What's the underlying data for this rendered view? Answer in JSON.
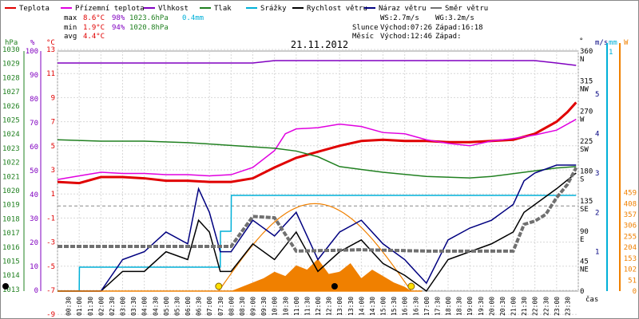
{
  "legend": [
    {
      "label": "Teplota",
      "color": "#e00000"
    },
    {
      "label": "Přízemní teplota",
      "color": "#e000e0"
    },
    {
      "label": "Vlhkost",
      "color": "#8000c0"
    },
    {
      "label": "Tlak",
      "color": "#208020"
    },
    {
      "label": "Srážky",
      "color": "#00b0d8"
    },
    {
      "label": "Rychlost větru",
      "color": "#000000"
    },
    {
      "label": "Náraz větru",
      "color": "#000080"
    },
    {
      "label": "Směr větru",
      "color": "#707070"
    }
  ],
  "stats": {
    "max_label": "max",
    "max_temp": "8.6°C",
    "max_hum": "98%",
    "max_press": "1023.6hPa",
    "max_rain": "0.4mm",
    "min_label": "min",
    "min_temp": "1.9°C",
    "min_hum": "94%",
    "min_press": "1020.8hPa",
    "avg_label": "avg",
    "avg_temp": "4.4°C"
  },
  "wind_stats": {
    "ws": "WS:2.7m/s",
    "wg": "WG:3.2m/s"
  },
  "sun_moon": {
    "sun_label": "Slunce",
    "sun_rise": "Východ:07:26",
    "sun_set": "Západ:16:18",
    "moon_label": "Měsíc",
    "moon_rise": "Východ:12:46",
    "moon_set": "Západ:"
  },
  "title": "21.11.2012",
  "axes": {
    "hpa_unit": "hPa",
    "pct_unit": "%",
    "c_unit": "°C",
    "deg_unit": "°",
    "ms_unit": "m/s",
    "mm_unit": "mm",
    "w_unit": "W",
    "x_unit": "čas",
    "hpa_ticks": [
      "1030",
      "1029",
      "1028",
      "1027",
      "1026",
      "1025",
      "1024",
      "1023",
      "1022",
      "1021",
      "1020",
      "1019",
      "1018",
      "1017",
      "1016",
      "1015",
      "1014",
      "1013"
    ],
    "pct_ticks": [
      "100",
      "90",
      "80",
      "70",
      "60",
      "50",
      "40",
      "30",
      "20",
      "10",
      "0"
    ],
    "c_ticks": [
      "13",
      "11",
      "9",
      "7",
      "5",
      "3",
      "1",
      "-1",
      "-3",
      "-5",
      "-7",
      "-9"
    ],
    "dir_ticks": [
      {
        "deg": "360",
        "d": "N"
      },
      {
        "deg": "315",
        "d": "NW"
      },
      {
        "deg": "270",
        "d": "W"
      },
      {
        "deg": "225",
        "d": "SW"
      },
      {
        "deg": "180",
        "d": "S"
      },
      {
        "deg": "135",
        "d": "SE"
      },
      {
        "deg": "90",
        "d": "E"
      },
      {
        "deg": "45",
        "d": "NE"
      },
      {
        "deg": "0",
        "d": ""
      }
    ],
    "ms_ticks": [
      "5",
      "4",
      "3",
      "2",
      "1"
    ],
    "mm_ticks": [
      "1"
    ],
    "w_ticks": [
      "459",
      "408",
      "357",
      "306",
      "255",
      "204",
      "153",
      "102",
      "51",
      "0"
    ],
    "x_ticks": [
      "00:30",
      "01:00",
      "01:30",
      "02:00",
      "02:30",
      "03:00",
      "03:30",
      "04:00",
      "04:30",
      "05:00",
      "05:30",
      "06:00",
      "06:30",
      "07:00",
      "07:30",
      "08:00",
      "08:30",
      "09:00",
      "09:30",
      "10:00",
      "10:30",
      "11:00",
      "11:30",
      "12:00",
      "12:30",
      "13:00",
      "13:30",
      "14:00",
      "14:30",
      "15:00",
      "15:30",
      "16:00",
      "16:30",
      "17:00",
      "17:30",
      "18:00",
      "18:30",
      "19:00",
      "19:30",
      "20:00",
      "20:30",
      "21:00",
      "21:30",
      "22:00",
      "22:30",
      "23:00",
      "23:30"
    ]
  },
  "chart_data": {
    "type": "line",
    "title": "21.11.2012",
    "xlabel": "čas",
    "x_range_hours": [
      0,
      24
    ],
    "grid": true,
    "series": [
      {
        "name": "Teplota",
        "unit": "°C",
        "color": "#e00000",
        "points": [
          [
            0,
            2.0
          ],
          [
            1,
            1.9
          ],
          [
            2,
            2.4
          ],
          [
            3,
            2.4
          ],
          [
            4,
            2.3
          ],
          [
            5,
            2.1
          ],
          [
            6,
            2.1
          ],
          [
            7,
            2.0
          ],
          [
            8,
            2.0
          ],
          [
            9,
            2.3
          ],
          [
            10,
            3.2
          ],
          [
            11,
            4.0
          ],
          [
            12,
            4.5
          ],
          [
            13,
            5.0
          ],
          [
            14,
            5.4
          ],
          [
            15,
            5.5
          ],
          [
            16,
            5.4
          ],
          [
            17,
            5.4
          ],
          [
            18,
            5.3
          ],
          [
            19,
            5.3
          ],
          [
            20,
            5.4
          ],
          [
            21,
            5.5
          ],
          [
            22,
            6.0
          ],
          [
            23,
            7.0
          ],
          [
            23.5,
            7.8
          ],
          [
            23.9,
            8.6
          ]
        ]
      },
      {
        "name": "Přízemní teplota",
        "unit": "°C",
        "color": "#e000e0",
        "points": [
          [
            0,
            2.2
          ],
          [
            1,
            2.5
          ],
          [
            2,
            2.8
          ],
          [
            3,
            2.7
          ],
          [
            4,
            2.7
          ],
          [
            5,
            2.6
          ],
          [
            6,
            2.6
          ],
          [
            7,
            2.5
          ],
          [
            8,
            2.6
          ],
          [
            9,
            3.2
          ],
          [
            10,
            4.6
          ],
          [
            10.5,
            6.0
          ],
          [
            11,
            6.4
          ],
          [
            12,
            6.5
          ],
          [
            13,
            6.8
          ],
          [
            14,
            6.6
          ],
          [
            15,
            6.1
          ],
          [
            16,
            6.0
          ],
          [
            17,
            5.5
          ],
          [
            18,
            5.2
          ],
          [
            19,
            5.0
          ],
          [
            20,
            5.4
          ],
          [
            21,
            5.6
          ],
          [
            22,
            5.9
          ],
          [
            23,
            6.3
          ],
          [
            23.9,
            7.2
          ]
        ]
      },
      {
        "name": "Vlhkost",
        "unit": "%",
        "color": "#8000c0",
        "points": [
          [
            0,
            95
          ],
          [
            5,
            95
          ],
          [
            9,
            95
          ],
          [
            10,
            96
          ],
          [
            11,
            96
          ],
          [
            14,
            96
          ],
          [
            19,
            96
          ],
          [
            22,
            96
          ],
          [
            23,
            95
          ],
          [
            23.9,
            94
          ]
        ]
      },
      {
        "name": "Tlak",
        "unit": "hPa",
        "color": "#208020",
        "points": [
          [
            0,
            1023.6
          ],
          [
            2,
            1023.5
          ],
          [
            4,
            1023.5
          ],
          [
            6,
            1023.4
          ],
          [
            8,
            1023.2
          ],
          [
            10,
            1023.0
          ],
          [
            11,
            1022.8
          ],
          [
            12,
            1022.4
          ],
          [
            13,
            1021.7
          ],
          [
            14,
            1021.5
          ],
          [
            15,
            1021.3
          ],
          [
            17,
            1021.0
          ],
          [
            19,
            1020.9
          ],
          [
            20,
            1021.0
          ],
          [
            21,
            1021.2
          ],
          [
            22,
            1021.4
          ],
          [
            23,
            1021.6
          ],
          [
            23.9,
            1021.7
          ]
        ]
      },
      {
        "name": "Srážky",
        "unit": "mm",
        "color": "#00b0d8",
        "points": [
          [
            0,
            0.0
          ],
          [
            1,
            0.0
          ],
          [
            1.01,
            0.1
          ],
          [
            4,
            0.1
          ],
          [
            7.5,
            0.1
          ],
          [
            7.51,
            0.25
          ],
          [
            8.0,
            0.25
          ],
          [
            8.01,
            0.4
          ],
          [
            23.9,
            0.4
          ]
        ]
      },
      {
        "name": "Rychlost větru",
        "unit": "m/s",
        "color": "#000000",
        "points": [
          [
            0,
            0
          ],
          [
            2,
            0
          ],
          [
            3,
            0.5
          ],
          [
            4,
            0.5
          ],
          [
            5,
            1
          ],
          [
            6,
            0.8
          ],
          [
            6.5,
            1.8
          ],
          [
            7,
            1.5
          ],
          [
            7.5,
            0.5
          ],
          [
            8,
            0.5
          ],
          [
            9,
            1.2
          ],
          [
            10,
            0.8
          ],
          [
            11,
            1.5
          ],
          [
            12,
            0.5
          ],
          [
            13,
            1.0
          ],
          [
            14,
            1.3
          ],
          [
            15,
            0.7
          ],
          [
            16,
            0.4
          ],
          [
            17,
            0
          ],
          [
            18,
            0.8
          ],
          [
            19,
            1.0
          ],
          [
            20,
            1.2
          ],
          [
            21,
            1.5
          ],
          [
            21.5,
            2.0
          ],
          [
            22,
            2.2
          ],
          [
            23,
            2.6
          ],
          [
            23.9,
            3.0
          ]
        ]
      },
      {
        "name": "Náraz větru",
        "unit": "m/s",
        "color": "#000080",
        "points": [
          [
            0,
            0
          ],
          [
            2,
            0
          ],
          [
            3,
            0.8
          ],
          [
            4,
            1.0
          ],
          [
            5,
            1.5
          ],
          [
            6,
            1.2
          ],
          [
            6.5,
            2.6
          ],
          [
            7,
            2.0
          ],
          [
            7.5,
            1.0
          ],
          [
            8,
            1.0
          ],
          [
            9,
            1.8
          ],
          [
            10,
            1.4
          ],
          [
            11,
            2.0
          ],
          [
            12,
            0.8
          ],
          [
            13,
            1.5
          ],
          [
            14,
            1.8
          ],
          [
            15,
            1.2
          ],
          [
            16,
            0.8
          ],
          [
            17,
            0.2
          ],
          [
            18,
            1.3
          ],
          [
            19,
            1.6
          ],
          [
            20,
            1.8
          ],
          [
            21,
            2.2
          ],
          [
            21.5,
            2.8
          ],
          [
            22,
            3.0
          ],
          [
            23,
            3.2
          ],
          [
            23.9,
            3.2
          ]
        ]
      },
      {
        "name": "Směr větru",
        "unit": "°",
        "color": "#707070",
        "points": [
          [
            0,
            67
          ],
          [
            3,
            67
          ],
          [
            6,
            67
          ],
          [
            8,
            67
          ],
          [
            9,
            112
          ],
          [
            10,
            110
          ],
          [
            11,
            60
          ],
          [
            14,
            62
          ],
          [
            17,
            60
          ],
          [
            20,
            60
          ],
          [
            21,
            60
          ],
          [
            21.5,
            100
          ],
          [
            22,
            105
          ],
          [
            22.5,
            115
          ],
          [
            23,
            140
          ],
          [
            23.5,
            160
          ],
          [
            23.9,
            185
          ]
        ]
      },
      {
        "name": "Solar",
        "unit": "W",
        "color": "#f08000",
        "points": [
          [
            0,
            0
          ],
          [
            16.8,
            0
          ]
        ]
      }
    ],
    "sun_curve": {
      "rise_h": 7.43,
      "set_h": 16.3,
      "peak_w": 408
    },
    "solar_fill": [
      [
        8,
        0
      ],
      [
        9,
        40
      ],
      [
        9.5,
        60
      ],
      [
        10,
        90
      ],
      [
        10.5,
        70
      ],
      [
        11,
        120
      ],
      [
        11.5,
        100
      ],
      [
        12,
        150
      ],
      [
        12.5,
        80
      ],
      [
        13,
        90
      ],
      [
        13.5,
        130
      ],
      [
        14,
        60
      ],
      [
        14.5,
        100
      ],
      [
        15,
        70
      ],
      [
        15.5,
        40
      ],
      [
        16,
        20
      ],
      [
        16.3,
        0
      ]
    ]
  }
}
